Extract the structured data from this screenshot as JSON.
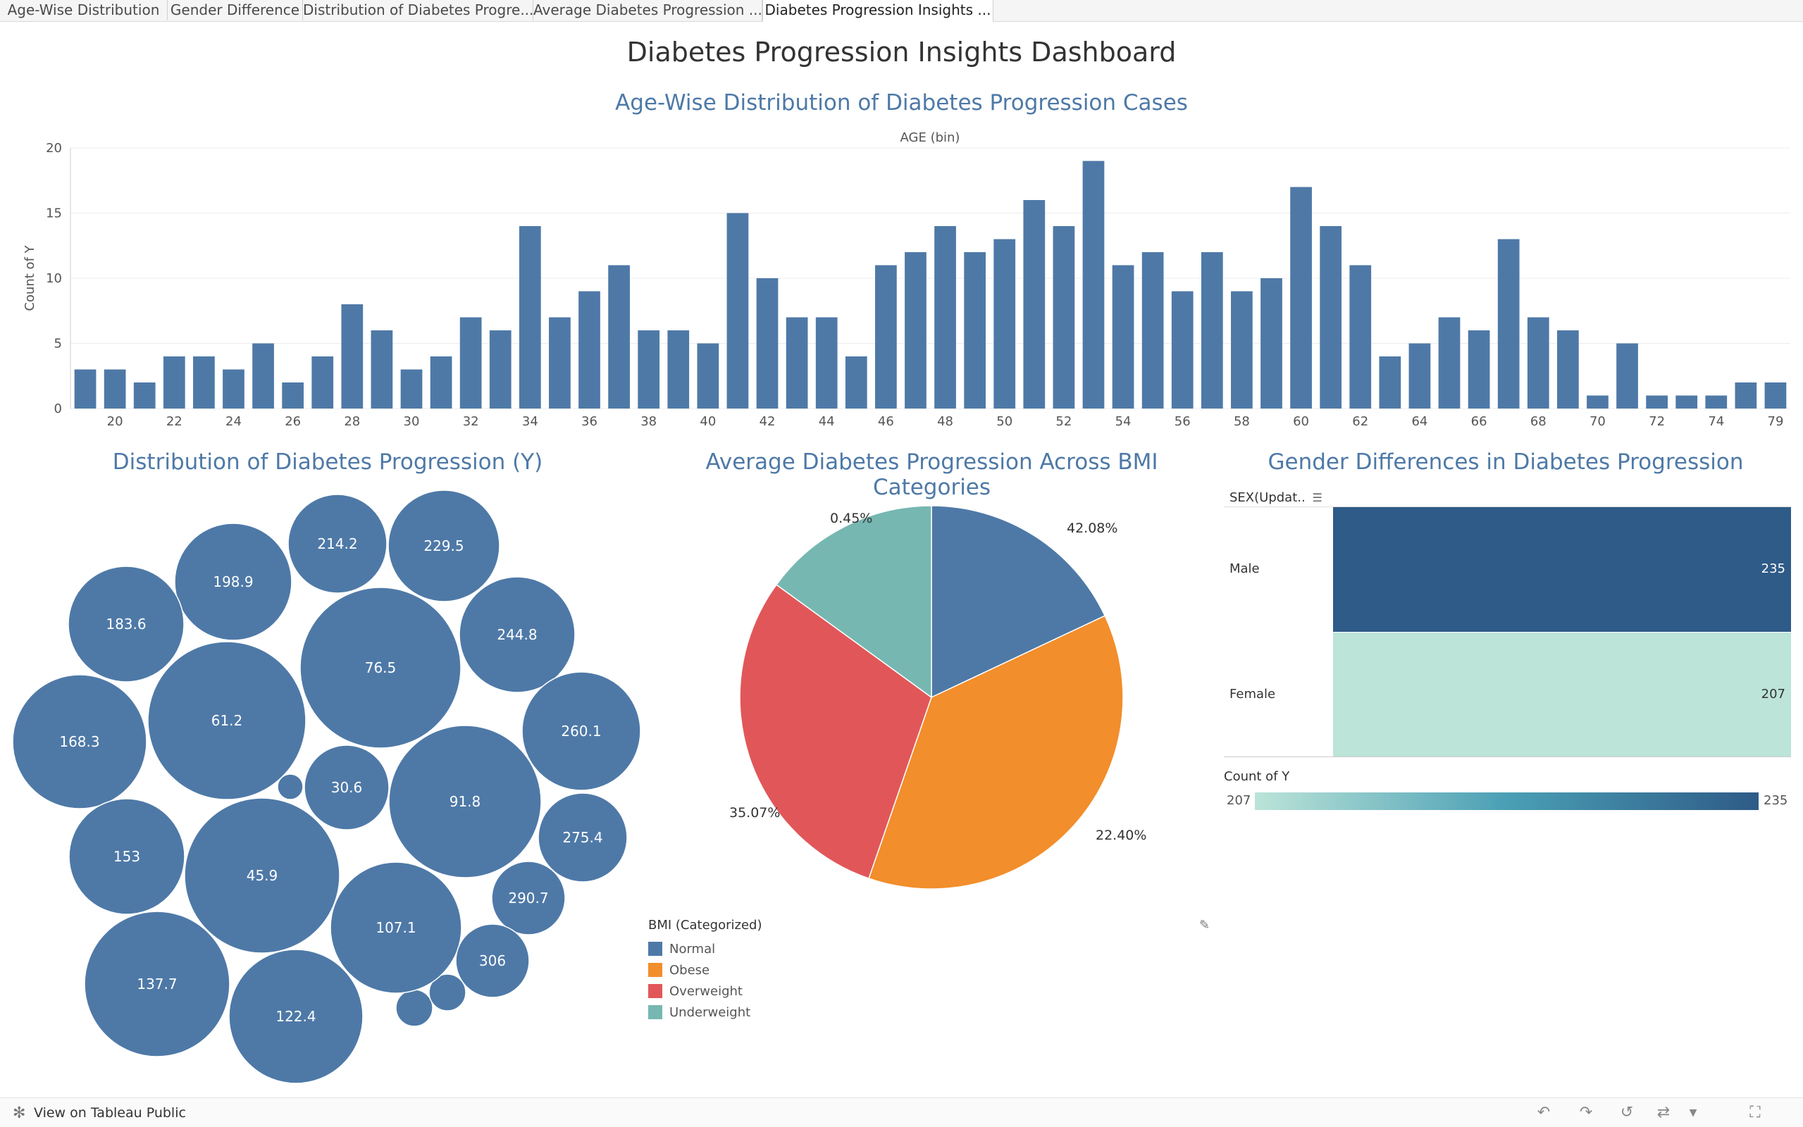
{
  "tabs": [
    {
      "label": "Age-Wise Distribution",
      "active": false
    },
    {
      "label": "Gender Difference",
      "active": false
    },
    {
      "label": "Distribution of Diabetes Progre...",
      "active": false
    },
    {
      "label": "Average Diabetes Progression ...",
      "active": false
    },
    {
      "label": "Diabetes Progression Insights ...",
      "active": true
    }
  ],
  "dashboard_title": "Diabetes Progression Insights Dashboard",
  "chart_data": [
    {
      "type": "bar",
      "title": "Age-Wise Distribution of Diabetes Progression Cases",
      "xlabel": "AGE (bin)",
      "ylabel": "Count of Y",
      "ylim": [
        0,
        20
      ],
      "yticks": [
        0,
        5,
        10,
        15,
        20
      ],
      "grid": true,
      "categories": [
        19,
        20,
        21,
        22,
        23,
        24,
        25,
        26,
        27,
        28,
        29,
        30,
        31,
        32,
        33,
        34,
        35,
        36,
        37,
        38,
        39,
        40,
        41,
        42,
        43,
        44,
        45,
        46,
        47,
        48,
        49,
        50,
        51,
        52,
        53,
        54,
        55,
        56,
        57,
        58,
        59,
        60,
        61,
        62,
        63,
        64,
        65,
        66,
        67,
        68,
        69,
        70,
        71,
        72,
        73,
        74,
        75,
        79
      ],
      "tick_labels": [
        20,
        22,
        24,
        26,
        28,
        30,
        32,
        34,
        36,
        38,
        40,
        42,
        44,
        46,
        48,
        50,
        52,
        54,
        56,
        58,
        60,
        62,
        64,
        66,
        68,
        70,
        72,
        74,
        79
      ],
      "values": [
        3,
        3,
        2,
        4,
        4,
        3,
        5,
        2,
        4,
        8,
        6,
        3,
        4,
        7,
        6,
        14,
        7,
        9,
        11,
        6,
        6,
        5,
        15,
        10,
        7,
        7,
        4,
        11,
        12,
        14,
        12,
        13,
        16,
        14,
        19,
        11,
        12,
        9,
        12,
        9,
        10,
        17,
        14,
        11,
        4,
        5,
        7,
        6,
        13,
        7,
        6,
        1,
        5,
        1,
        1,
        1,
        2,
        2
      ],
      "color": "#4e79a7"
    },
    {
      "type": "bubble",
      "title": "Distribution of Diabetes Progression (Y)",
      "values": [
        "214.2",
        "229.5",
        "198.9",
        "183.6",
        "76.5",
        "244.8",
        "61.2",
        "168.3",
        "260.1",
        "30.6",
        "91.8",
        "275.4",
        "153",
        "45.9",
        "290.7",
        "107.1",
        "306",
        "137.7",
        "122.4"
      ],
      "color": "#4e79a7"
    },
    {
      "type": "pie",
      "title": "Average Diabetes Progression Across BMI Categories",
      "legend_title": "BMI (Categorized)",
      "legend_position": "bottom-left",
      "slices": [
        {
          "name": "Normal",
          "label": "42.08%",
          "value": 42.08,
          "color": "#4e79a7"
        },
        {
          "name": "Obese",
          "label": "22.40%",
          "value": 22.4,
          "color": "#f28e2b"
        },
        {
          "name": "Overweight",
          "label": "35.07%",
          "value": 35.07,
          "color": "#e15759"
        },
        {
          "name": "Underweight",
          "label": "0.45%",
          "value": 0.45,
          "color": "#76b7b2"
        }
      ]
    },
    {
      "type": "table",
      "title": "Gender Differences in Diabetes Progression",
      "column_header": "SEX(Updat..",
      "rows": [
        {
          "label": "Male",
          "value": 235,
          "color": "#2e5b87"
        },
        {
          "label": "Female",
          "value": 207,
          "color": "#bce4d8"
        }
      ],
      "color_legend": {
        "title": "Count of Y",
        "min": "207",
        "max": "235",
        "min_color": "#bce4d8",
        "max_color": "#2e5b87"
      }
    }
  ],
  "footer": {
    "link_label": "View on Tableau Public"
  }
}
